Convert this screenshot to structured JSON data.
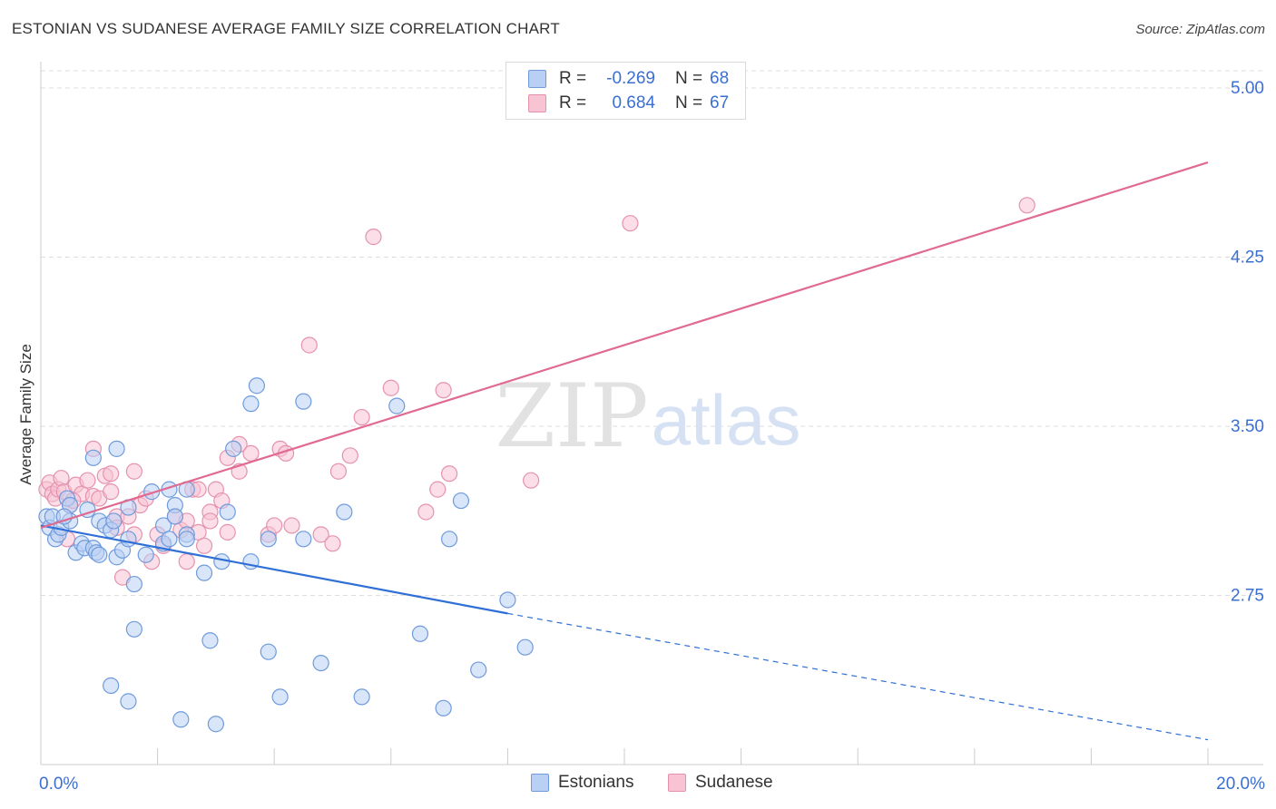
{
  "title": "ESTONIAN VS SUDANESE AVERAGE FAMILY SIZE CORRELATION CHART",
  "source": "Source: ZipAtlas.com",
  "watermark": {
    "zip": "ZIP",
    "atlas": "atlas"
  },
  "legend": {
    "estonians": {
      "r_label": "R =",
      "r_value": "-0.269",
      "n_label": "N =",
      "n_value": "68"
    },
    "sudanese": {
      "r_label": "R =",
      "r_value": "0.684",
      "n_label": "N =",
      "n_value": "67"
    }
  },
  "colors": {
    "estonians_fill": "#b9d0f4",
    "estonians_stroke": "#6f9bdc",
    "estonians_line": "#2f6fd6",
    "sudanese_fill": "#f8c3d3",
    "sudanese_stroke": "#e592ae",
    "sudanese_line": "#e06a92",
    "axis_label": "#3a6fd0",
    "grid": "#dddddd"
  },
  "chart_data": {
    "type": "scatter",
    "title": "ESTONIAN VS SUDANESE AVERAGE FAMILY SIZE CORRELATION CHART",
    "xlabel": "",
    "ylabel": "Average Family Size",
    "xlim": [
      0,
      20
    ],
    "ylim": [
      2.0,
      5.0
    ],
    "x_tick_labels": [
      "0.0%",
      "20.0%"
    ],
    "y_ticks": [
      {
        "value": 2.75,
        "label": "2.75"
      },
      {
        "value": 3.5,
        "label": "3.50"
      },
      {
        "value": 4.25,
        "label": "4.25"
      },
      {
        "value": 5.0,
        "label": "5.00"
      }
    ],
    "grid": true,
    "legend_position": "top-center",
    "series": [
      {
        "name": "Estonians",
        "r": -0.269,
        "n": 68,
        "trend": {
          "x0": 0.0,
          "y0": 3.06,
          "x1": 8.0,
          "y1": 2.67,
          "dash_to_x": 20.0,
          "dash_to_y": 2.11
        },
        "points": [
          [
            0.1,
            3.1
          ],
          [
            0.15,
            3.05
          ],
          [
            0.2,
            3.1
          ],
          [
            0.25,
            3.0
          ],
          [
            0.3,
            3.02
          ],
          [
            0.35,
            3.05
          ],
          [
            0.45,
            3.18
          ],
          [
            0.5,
            3.15
          ],
          [
            0.5,
            3.08
          ],
          [
            0.6,
            2.94
          ],
          [
            0.7,
            2.98
          ],
          [
            0.75,
            2.96
          ],
          [
            0.8,
            3.13
          ],
          [
            0.9,
            2.96
          ],
          [
            0.95,
            2.94
          ],
          [
            1.0,
            2.93
          ],
          [
            0.4,
            3.1
          ],
          [
            1.0,
            3.08
          ],
          [
            1.1,
            3.06
          ],
          [
            1.2,
            3.04
          ],
          [
            1.25,
            3.08
          ],
          [
            1.3,
            2.92
          ],
          [
            1.4,
            2.95
          ],
          [
            1.5,
            3.0
          ],
          [
            0.9,
            3.36
          ],
          [
            1.3,
            3.4
          ],
          [
            1.5,
            3.14
          ],
          [
            1.6,
            2.6
          ],
          [
            1.6,
            2.8
          ],
          [
            1.8,
            2.93
          ],
          [
            1.9,
            3.21
          ],
          [
            2.1,
            3.06
          ],
          [
            2.1,
            2.98
          ],
          [
            2.2,
            3.0
          ],
          [
            2.2,
            3.22
          ],
          [
            2.3,
            3.15
          ],
          [
            2.3,
            3.1
          ],
          [
            2.5,
            3.02
          ],
          [
            2.5,
            3.0
          ],
          [
            2.5,
            3.22
          ],
          [
            2.8,
            2.85
          ],
          [
            2.9,
            2.55
          ],
          [
            3.1,
            2.9
          ],
          [
            3.2,
            3.12
          ],
          [
            3.3,
            3.4
          ],
          [
            3.6,
            3.6
          ],
          [
            3.6,
            2.9
          ],
          [
            3.7,
            3.68
          ],
          [
            3.9,
            3.0
          ],
          [
            3.9,
            2.5
          ],
          [
            4.1,
            2.3
          ],
          [
            4.5,
            3.61
          ],
          [
            4.5,
            3.0
          ],
          [
            4.8,
            2.45
          ],
          [
            5.2,
            3.12
          ],
          [
            5.5,
            2.3
          ],
          [
            6.1,
            3.59
          ],
          [
            6.5,
            2.58
          ],
          [
            6.9,
            2.25
          ],
          [
            7.0,
            3.0
          ],
          [
            7.2,
            3.17
          ],
          [
            7.5,
            2.42
          ],
          [
            8.0,
            2.73
          ],
          [
            8.3,
            2.52
          ],
          [
            1.2,
            2.35
          ],
          [
            1.5,
            2.28
          ],
          [
            2.4,
            2.2
          ],
          [
            3.0,
            2.18
          ]
        ]
      },
      {
        "name": "Sudanese",
        "r": 0.684,
        "n": 67,
        "trend": {
          "x0": 0.0,
          "y0": 3.05,
          "x1": 20.0,
          "y1": 4.67
        },
        "points": [
          [
            0.1,
            3.22
          ],
          [
            0.15,
            3.25
          ],
          [
            0.2,
            3.2
          ],
          [
            0.25,
            3.18
          ],
          [
            0.3,
            3.22
          ],
          [
            0.35,
            3.27
          ],
          [
            0.4,
            3.21
          ],
          [
            0.5,
            3.15
          ],
          [
            0.6,
            3.24
          ],
          [
            0.7,
            3.2
          ],
          [
            0.8,
            3.26
          ],
          [
            0.9,
            3.19
          ],
          [
            1.0,
            3.18
          ],
          [
            1.1,
            3.28
          ],
          [
            1.2,
            3.21
          ],
          [
            1.3,
            3.1
          ],
          [
            0.9,
            3.4
          ],
          [
            1.2,
            3.29
          ],
          [
            1.3,
            3.05
          ],
          [
            1.5,
            3.1
          ],
          [
            1.6,
            3.02
          ],
          [
            1.7,
            3.15
          ],
          [
            1.8,
            3.18
          ],
          [
            1.9,
            2.9
          ],
          [
            1.4,
            2.83
          ],
          [
            2.0,
            3.02
          ],
          [
            2.1,
            2.97
          ],
          [
            2.3,
            3.1
          ],
          [
            2.4,
            3.04
          ],
          [
            2.5,
            3.08
          ],
          [
            2.6,
            3.22
          ],
          [
            2.7,
            3.03
          ],
          [
            2.5,
            2.9
          ],
          [
            2.7,
            3.22
          ],
          [
            2.8,
            2.97
          ],
          [
            2.9,
            3.12
          ],
          [
            3.0,
            3.22
          ],
          [
            3.1,
            3.17
          ],
          [
            3.2,
            3.03
          ],
          [
            3.4,
            3.3
          ],
          [
            3.6,
            3.38
          ],
          [
            3.9,
            3.02
          ],
          [
            4.0,
            3.06
          ],
          [
            4.1,
            3.4
          ],
          [
            4.3,
            3.06
          ],
          [
            4.6,
            3.86
          ],
          [
            4.8,
            3.02
          ],
          [
            5.0,
            2.98
          ],
          [
            5.1,
            3.3
          ],
          [
            5.3,
            3.37
          ],
          [
            5.5,
            3.54
          ],
          [
            5.7,
            4.34
          ],
          [
            6.0,
            3.67
          ],
          [
            6.6,
            3.12
          ],
          [
            6.8,
            3.22
          ],
          [
            6.9,
            3.66
          ],
          [
            7.0,
            3.29
          ],
          [
            8.4,
            3.26
          ],
          [
            10.1,
            4.4
          ],
          [
            16.9,
            4.48
          ],
          [
            3.4,
            3.42
          ],
          [
            2.9,
            3.08
          ],
          [
            3.2,
            3.36
          ],
          [
            4.2,
            3.38
          ],
          [
            1.6,
            3.3
          ],
          [
            0.55,
            3.17
          ],
          [
            0.45,
            3.0
          ]
        ]
      }
    ]
  }
}
